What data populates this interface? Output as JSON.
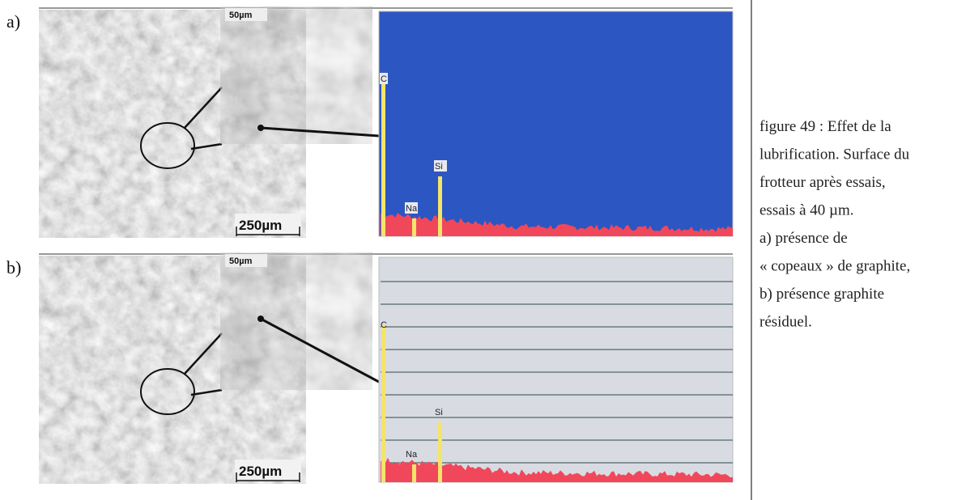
{
  "panels": [
    {
      "label": "a)",
      "zoom_scale": "50µm",
      "scale": "250µm",
      "peaks": [
        "C",
        "Na",
        "Si"
      ]
    },
    {
      "label": "b)",
      "zoom_scale": "50µm",
      "scale": "250µm",
      "peaks": [
        "C",
        "Na",
        "Si"
      ]
    }
  ],
  "caption": [
    "figure 49 : Effet de la",
    "lubrification. Surface du",
    "frotteur après essais,",
    "essais à 40 µm.",
    "a) présence de",
    "« copeaux » de graphite,",
    "b) présence graphite",
    "résiduel."
  ]
}
